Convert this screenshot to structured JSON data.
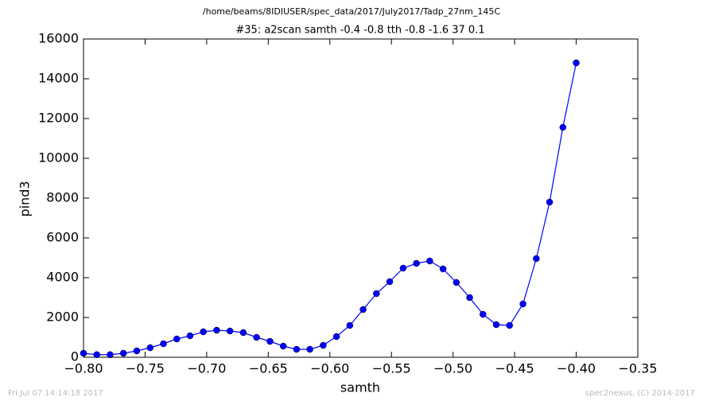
{
  "chart_data": {
    "type": "line",
    "suptitle": "/home/beams/8IDIUSER/spec_data/2017/July2017/Tadp_27nm_145C",
    "title": "#35: a2scan  samth -0.4 -0.8  tth -0.8 -1.6  37 0.1",
    "xlabel": "samth",
    "ylabel": "pind3",
    "footer_left": "Fri Jul 07 14:14:18 2017",
    "footer_right": "spec2nexus, (C) 2014-2017",
    "color": "#0000ff",
    "markers": true,
    "x": [
      -0.8,
      -0.7892,
      -0.7784,
      -0.7676,
      -0.7568,
      -0.7459,
      -0.7351,
      -0.7243,
      -0.7135,
      -0.7027,
      -0.6919,
      -0.6811,
      -0.6703,
      -0.6595,
      -0.6486,
      -0.6378,
      -0.627,
      -0.6162,
      -0.6054,
      -0.5946,
      -0.5838,
      -0.573,
      -0.5622,
      -0.5514,
      -0.5405,
      -0.5297,
      -0.5189,
      -0.5081,
      -0.4973,
      -0.4865,
      -0.4757,
      -0.4649,
      -0.4541,
      -0.4432,
      -0.4324,
      -0.4216,
      -0.4108,
      -0.4
    ],
    "values": [
      200,
      130,
      130,
      200,
      320,
      480,
      680,
      920,
      1080,
      1280,
      1360,
      1320,
      1240,
      1000,
      800,
      560,
      400,
      400,
      600,
      1040,
      1600,
      2400,
      3200,
      3800,
      4480,
      4720,
      4840,
      4440,
      3760,
      3000,
      2160,
      1640,
      1600,
      2680,
      4960,
      7800,
      11560,
      14800
    ],
    "xlim": [
      -0.8,
      -0.35
    ],
    "xticks": [
      {
        "value": -0.8,
        "label": "−0.80"
      },
      {
        "value": -0.75,
        "label": "−0.75"
      },
      {
        "value": -0.7,
        "label": "−0.70"
      },
      {
        "value": -0.65,
        "label": "−0.65"
      },
      {
        "value": -0.6,
        "label": "−0.60"
      },
      {
        "value": -0.55,
        "label": "−0.55"
      },
      {
        "value": -0.5,
        "label": "−0.50"
      },
      {
        "value": -0.45,
        "label": "−0.45"
      },
      {
        "value": -0.4,
        "label": "−0.40"
      },
      {
        "value": -0.35,
        "label": "−0.35"
      }
    ],
    "ylim": [
      0,
      16000
    ],
    "yticks": [
      0,
      2000,
      4000,
      6000,
      8000,
      10000,
      12000,
      14000,
      16000
    ]
  }
}
